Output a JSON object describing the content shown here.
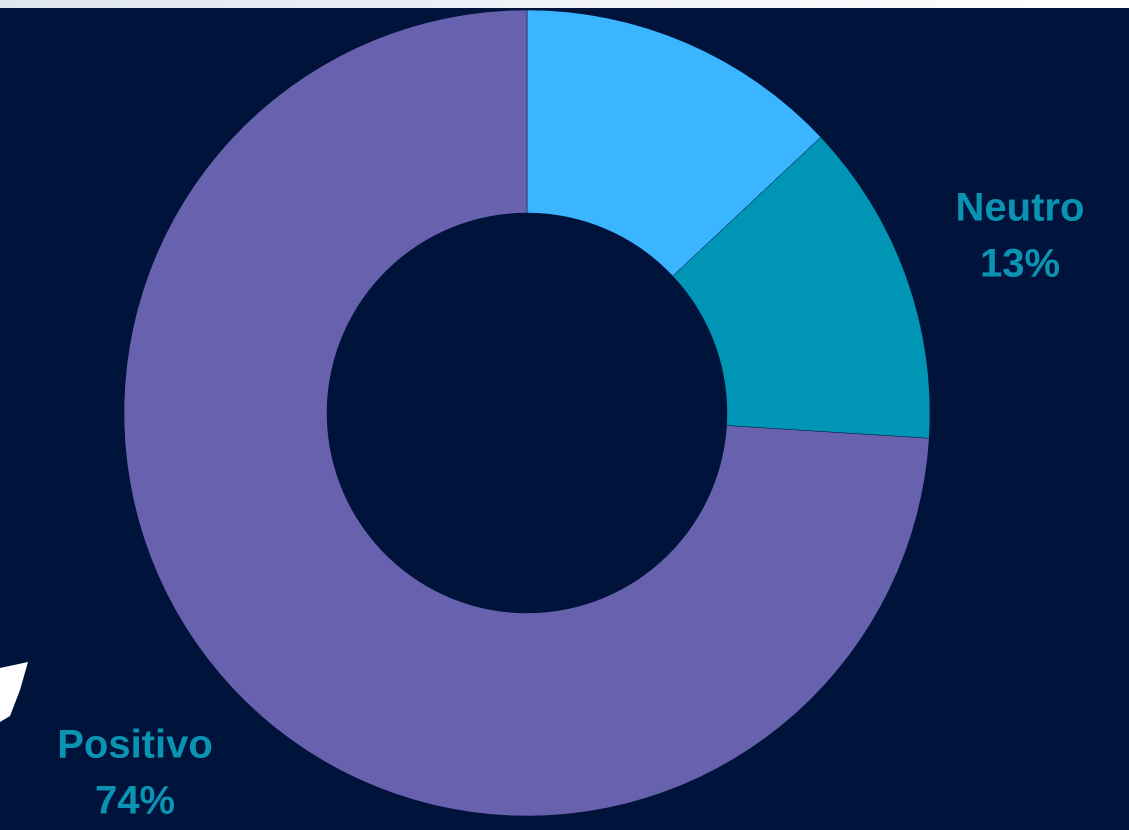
{
  "chart_data": {
    "type": "donut",
    "categories": [
      null,
      "Neutro",
      "Positivo"
    ],
    "values": [
      13,
      13,
      74
    ],
    "value_labels": [
      null,
      "13%",
      "74%"
    ],
    "colors": [
      "#3bb5ff",
      "#0095b5",
      "#6862ae"
    ],
    "label_color": "#0a93b3"
  }
}
